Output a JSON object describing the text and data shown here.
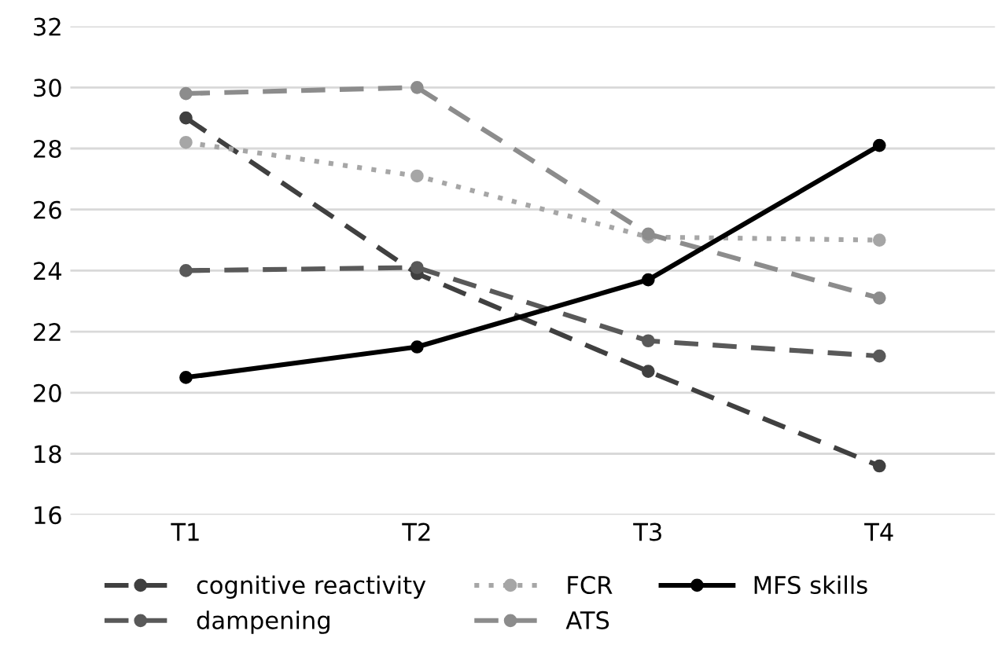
{
  "chart_data": {
    "type": "line",
    "categories": [
      "T1",
      "T2",
      "T3",
      "T4"
    ],
    "series": [
      {
        "name": "cognitive reactivity",
        "color": "#404040",
        "line_style": "dashed",
        "values": [
          29.0,
          23.9,
          20.7,
          17.6
        ]
      },
      {
        "name": "dampening",
        "color": "#595959",
        "line_style": "dashed",
        "values": [
          24.0,
          24.1,
          21.7,
          21.2
        ]
      },
      {
        "name": "FCR",
        "color": "#a6a6a6",
        "line_style": "dotted",
        "values": [
          28.2,
          27.1,
          25.1,
          25.0
        ]
      },
      {
        "name": "ATS",
        "color": "#8c8c8c",
        "line_style": "dashed",
        "values": [
          29.8,
          30.0,
          25.2,
          23.1
        ]
      },
      {
        "name": "MFS skills",
        "color": "#000000",
        "line_style": "solid",
        "values": [
          20.5,
          21.5,
          23.7,
          28.1
        ]
      }
    ],
    "ylim": [
      16,
      32
    ],
    "yticks": [
      16,
      18,
      20,
      22,
      24,
      26,
      28,
      30,
      32
    ],
    "grid": "y",
    "legend": "bottom",
    "marker": "circle"
  }
}
